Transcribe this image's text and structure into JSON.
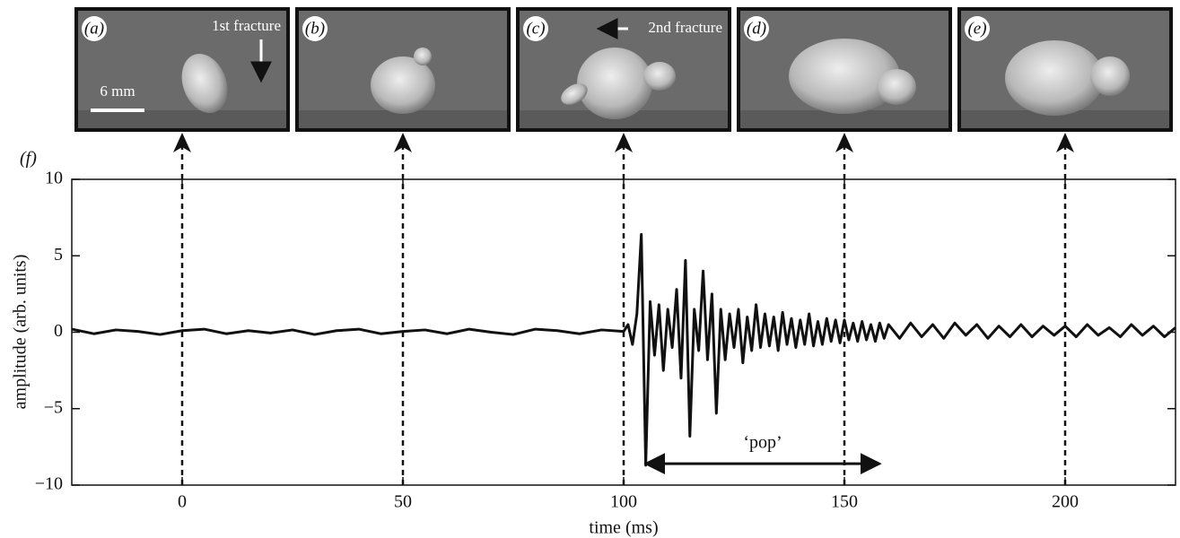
{
  "chart_data": {
    "type": "line",
    "panel_label": "(f)",
    "xlabel": "time (ms)",
    "ylabel": "amplitude (arb. units)",
    "xlim": [
      -25,
      225
    ],
    "ylim": [
      -10,
      10
    ],
    "xticks": [
      0,
      50,
      100,
      150,
      200
    ],
    "yticks": [
      {
        "value": -10,
        "label": "−10"
      },
      {
        "value": -5,
        "label": "−5"
      },
      0,
      5,
      10
    ],
    "x": [
      -25,
      -20,
      -15,
      -10,
      -5,
      0,
      5,
      10,
      15,
      20,
      25,
      30,
      35,
      40,
      45,
      50,
      55,
      60,
      65,
      70,
      75,
      80,
      85,
      90,
      95,
      100,
      101,
      102,
      103,
      104,
      105,
      106,
      107,
      108,
      109,
      110,
      111,
      112,
      113,
      114,
      115,
      116,
      117,
      118,
      119,
      120,
      121,
      122,
      123,
      124,
      125,
      126,
      127,
      128,
      129,
      130,
      131,
      132,
      133,
      134,
      135,
      136,
      137,
      138,
      139,
      140,
      141,
      142,
      143,
      144,
      145,
      146,
      147,
      148,
      149,
      150,
      151,
      152,
      153,
      154,
      155,
      156,
      157,
      158,
      159,
      160,
      162.5,
      165,
      167.5,
      170,
      172.5,
      175,
      177.5,
      180,
      182.5,
      185,
      187.5,
      190,
      192.5,
      195,
      197.5,
      200,
      202.5,
      205,
      207.5,
      210,
      212.5,
      215,
      217.5,
      220,
      222.5,
      225
    ],
    "series": [
      {
        "color": "#111111",
        "values": [
          0.2,
          -0.1,
          0.15,
          0.05,
          -0.15,
          0.1,
          0.2,
          -0.1,
          0.1,
          -0.05,
          0.15,
          -0.15,
          0.1,
          0.2,
          -0.1,
          0.05,
          0.15,
          -0.1,
          0.2,
          0.0,
          -0.15,
          0.2,
          0.1,
          -0.1,
          0.15,
          0.05,
          0.5,
          -0.8,
          1.2,
          6.4,
          -8.7,
          2.0,
          -1.5,
          1.8,
          -2.5,
          1.5,
          -1.0,
          2.8,
          -3.0,
          4.7,
          -6.8,
          1.5,
          -1.2,
          4.0,
          -1.8,
          2.5,
          -5.3,
          1.5,
          -1.8,
          1.2,
          -1.0,
          1.5,
          -2.0,
          1.0,
          -1.2,
          1.8,
          -1.0,
          1.2,
          -0.9,
          1.0,
          -1.2,
          1.3,
          -0.8,
          0.9,
          -1.0,
          0.8,
          -0.8,
          1.2,
          -0.9,
          0.7,
          -0.8,
          0.9,
          -0.6,
          0.8,
          -0.7,
          0.8,
          -0.5,
          0.6,
          -0.6,
          0.7,
          -0.5,
          0.5,
          -0.6,
          0.6,
          -0.4,
          0.5,
          -0.4,
          0.6,
          -0.3,
          0.5,
          -0.4,
          0.6,
          -0.2,
          0.5,
          -0.4,
          0.4,
          -0.3,
          0.5,
          -0.3,
          0.4,
          -0.2,
          0.4,
          -0.3,
          0.5,
          -0.2,
          0.3,
          -0.3,
          0.5,
          -0.2,
          0.4,
          -0.3,
          0.3
        ]
      }
    ],
    "markers": [
      0,
      50,
      100,
      150,
      200
    ],
    "frames": [
      {
        "label": "(a)",
        "annotation": "1st fracture",
        "scale_bar": "6 mm"
      },
      {
        "label": "(b)"
      },
      {
        "label": "(c)",
        "annotation": "2nd fracture"
      },
      {
        "label": "(d)"
      },
      {
        "label": "(e)"
      }
    ],
    "annotations": [
      {
        "text": "‘pop’",
        "x": [
          105,
          158
        ],
        "y": -8.6
      }
    ]
  }
}
